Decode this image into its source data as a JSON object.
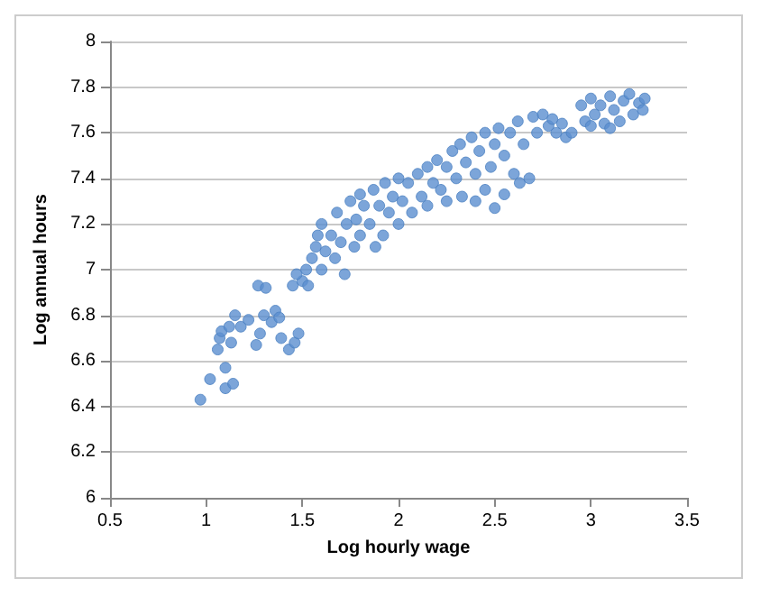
{
  "chart_data": {
    "type": "scatter",
    "xlabel": "Log hourly wage",
    "ylabel": "Log annual hours",
    "xlim": [
      0.5,
      3.5
    ],
    "xticks": [
      0.5,
      1,
      1.5,
      2,
      2.5,
      3,
      3.5
    ],
    "ylim": [
      6,
      8
    ],
    "yticks": [
      6,
      6.2,
      6.4,
      6.6,
      6.8,
      7,
      7.2,
      7.4,
      7.6,
      7.8,
      8
    ],
    "grid": "y",
    "marker": "circle",
    "series": [
      {
        "color": "#5b8fd0",
        "x": [
          0.97,
          1.02,
          1.1,
          1.1,
          1.14,
          1.06,
          1.07,
          1.08,
          1.12,
          1.13,
          1.15,
          1.18,
          1.22,
          1.26,
          1.28,
          1.3,
          1.34,
          1.36,
          1.38,
          1.27,
          1.31,
          1.39,
          1.43,
          1.46,
          1.48,
          1.45,
          1.5,
          1.47,
          1.52,
          1.55,
          1.53,
          1.57,
          1.6,
          1.58,
          1.62,
          1.6,
          1.65,
          1.67,
          1.68,
          1.7,
          1.72,
          1.73,
          1.75,
          1.77,
          1.78,
          1.8,
          1.8,
          1.82,
          1.85,
          1.87,
          1.88,
          1.9,
          1.92,
          1.93,
          1.95,
          1.97,
          2.0,
          2.0,
          2.02,
          2.05,
          2.07,
          2.1,
          2.12,
          2.15,
          2.15,
          2.18,
          2.2,
          2.22,
          2.25,
          2.25,
          2.28,
          2.3,
          2.32,
          2.33,
          2.35,
          2.38,
          2.4,
          2.4,
          2.42,
          2.45,
          2.45,
          2.48,
          2.5,
          2.5,
          2.52,
          2.55,
          2.55,
          2.58,
          2.6,
          2.62,
          2.63,
          2.65,
          2.68,
          2.7,
          2.72,
          2.75,
          2.78,
          2.8,
          2.82,
          2.85,
          2.87,
          2.9,
          2.95,
          2.97,
          3.0,
          3.02,
          3.05,
          3.07,
          3.1,
          3.12,
          3.15,
          3.17,
          3.2,
          3.22,
          3.25,
          3.27,
          3.28,
          3.1,
          3.0
        ],
        "values": [
          6.43,
          6.52,
          6.48,
          6.57,
          6.5,
          6.65,
          6.7,
          6.73,
          6.75,
          6.68,
          6.8,
          6.75,
          6.78,
          6.67,
          6.72,
          6.8,
          6.77,
          6.82,
          6.79,
          6.93,
          6.92,
          6.7,
          6.65,
          6.68,
          6.72,
          6.93,
          6.95,
          6.98,
          7.0,
          7.05,
          6.93,
          7.1,
          7.0,
          7.15,
          7.08,
          7.2,
          7.15,
          7.05,
          7.25,
          7.12,
          6.98,
          7.2,
          7.3,
          7.1,
          7.22,
          7.33,
          7.15,
          7.28,
          7.2,
          7.35,
          7.1,
          7.28,
          7.15,
          7.38,
          7.25,
          7.32,
          7.2,
          7.4,
          7.3,
          7.38,
          7.25,
          7.42,
          7.32,
          7.45,
          7.28,
          7.38,
          7.48,
          7.35,
          7.45,
          7.3,
          7.52,
          7.4,
          7.55,
          7.32,
          7.47,
          7.58,
          7.3,
          7.42,
          7.52,
          7.6,
          7.35,
          7.45,
          7.55,
          7.27,
          7.62,
          7.5,
          7.33,
          7.6,
          7.42,
          7.65,
          7.38,
          7.55,
          7.4,
          7.67,
          7.6,
          7.68,
          7.63,
          7.66,
          7.6,
          7.64,
          7.58,
          7.6,
          7.72,
          7.65,
          7.75,
          7.68,
          7.72,
          7.64,
          7.76,
          7.7,
          7.65,
          7.74,
          7.77,
          7.68,
          7.73,
          7.7,
          7.75,
          7.62,
          7.63
        ]
      }
    ]
  }
}
